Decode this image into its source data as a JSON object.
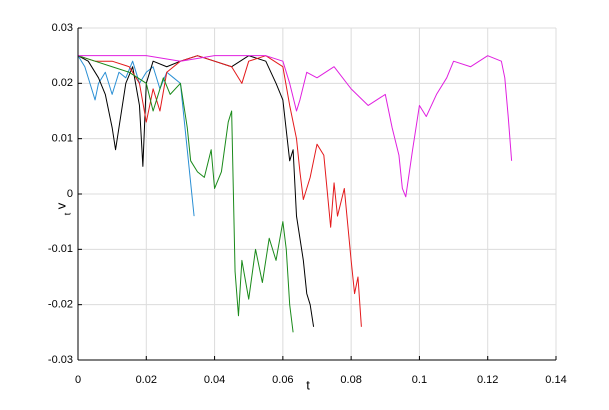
{
  "chart_data": {
    "type": "line",
    "xlabel": "t",
    "ylabel": "v",
    "ylabel_sub": "t",
    "xlim": [
      0,
      0.14
    ],
    "ylim": [
      -0.03,
      0.03
    ],
    "xticks": [
      0,
      0.02,
      0.04,
      0.06,
      0.08,
      0.1,
      0.12,
      0.14
    ],
    "yticks": [
      -0.03,
      -0.02,
      -0.01,
      0,
      0.01,
      0.02,
      0.03
    ],
    "grid": true,
    "series": [
      {
        "color": "#2a8fd4",
        "x": [
          0,
          0.002,
          0.004,
          0.005,
          0.006,
          0.008,
          0.01,
          0.012,
          0.014,
          0.016,
          0.018,
          0.02,
          0.022,
          0.024,
          0.026,
          0.028,
          0.03,
          0.031,
          0.032,
          0.033,
          0.034
        ],
        "values": [
          0.025,
          0.023,
          0.019,
          0.017,
          0.02,
          0.022,
          0.018,
          0.022,
          0.021,
          0.024,
          0.02,
          0.022,
          0.023,
          0.019,
          0.022,
          0.021,
          0.02,
          0.014,
          0.008,
          0.002,
          -0.004
        ]
      },
      {
        "color": "#000000",
        "x": [
          0,
          0.003,
          0.006,
          0.008,
          0.01,
          0.011,
          0.012,
          0.014,
          0.016,
          0.018,
          0.019,
          0.02,
          0.022,
          0.026,
          0.03,
          0.035,
          0.04,
          0.045,
          0.05,
          0.055,
          0.058,
          0.06,
          0.062,
          0.063,
          0.064,
          0.066,
          0.067,
          0.068,
          0.069
        ],
        "values": [
          0.025,
          0.024,
          0.021,
          0.018,
          0.012,
          0.008,
          0.012,
          0.02,
          0.023,
          0.016,
          0.005,
          0.02,
          0.024,
          0.023,
          0.024,
          0.025,
          0.024,
          0.023,
          0.025,
          0.024,
          0.02,
          0.017,
          0.006,
          0.008,
          -0.004,
          -0.012,
          -0.018,
          -0.02,
          -0.024
        ]
      },
      {
        "color": "#e41a1c",
        "x": [
          0,
          0.005,
          0.01,
          0.015,
          0.018,
          0.02,
          0.022,
          0.024,
          0.026,
          0.03,
          0.035,
          0.04,
          0.045,
          0.048,
          0.05,
          0.055,
          0.06,
          0.062,
          0.064,
          0.065,
          0.066,
          0.068,
          0.07,
          0.072,
          0.074,
          0.075,
          0.076,
          0.078,
          0.08,
          0.081,
          0.082,
          0.083
        ],
        "values": [
          0.025,
          0.024,
          0.024,
          0.023,
          0.02,
          0.013,
          0.019,
          0.015,
          0.022,
          0.024,
          0.025,
          0.024,
          0.023,
          0.02,
          0.024,
          0.025,
          0.023,
          0.016,
          0.01,
          0.004,
          -0.001,
          0.003,
          0.009,
          0.007,
          -0.006,
          0.002,
          -0.004,
          0.001,
          -0.012,
          -0.018,
          -0.015,
          -0.024
        ]
      },
      {
        "color": "#1a8a1a",
        "x": [
          0,
          0.005,
          0.01,
          0.015,
          0.02,
          0.022,
          0.025,
          0.027,
          0.03,
          0.032,
          0.033,
          0.035,
          0.037,
          0.039,
          0.04,
          0.042,
          0.044,
          0.045,
          0.046,
          0.047,
          0.048,
          0.05,
          0.052,
          0.054,
          0.056,
          0.058,
          0.06,
          0.061,
          0.062,
          0.063
        ],
        "values": [
          0.025,
          0.024,
          0.023,
          0.022,
          0.02,
          0.015,
          0.021,
          0.018,
          0.02,
          0.012,
          0.006,
          0.004,
          0.003,
          0.008,
          0.001,
          0.004,
          0.013,
          0.015,
          -0.014,
          -0.022,
          -0.012,
          -0.019,
          -0.01,
          -0.016,
          -0.008,
          -0.012,
          -0.005,
          -0.01,
          -0.02,
          -0.025
        ]
      },
      {
        "color": "#e020e0",
        "x": [
          0,
          0.01,
          0.02,
          0.03,
          0.04,
          0.05,
          0.055,
          0.06,
          0.062,
          0.064,
          0.065,
          0.067,
          0.07,
          0.075,
          0.08,
          0.085,
          0.09,
          0.092,
          0.094,
          0.095,
          0.096,
          0.098,
          0.1,
          0.102,
          0.105,
          0.108,
          0.11,
          0.115,
          0.12,
          0.124,
          0.125,
          0.126,
          0.127
        ],
        "values": [
          0.025,
          0.025,
          0.025,
          0.024,
          0.025,
          0.025,
          0.025,
          0.024,
          0.02,
          0.015,
          0.017,
          0.022,
          0.021,
          0.023,
          0.019,
          0.016,
          0.018,
          0.012,
          0.007,
          0.001,
          -0.0005,
          0.008,
          0.016,
          0.014,
          0.018,
          0.021,
          0.024,
          0.023,
          0.025,
          0.024,
          0.021,
          0.014,
          0.006
        ]
      }
    ]
  }
}
